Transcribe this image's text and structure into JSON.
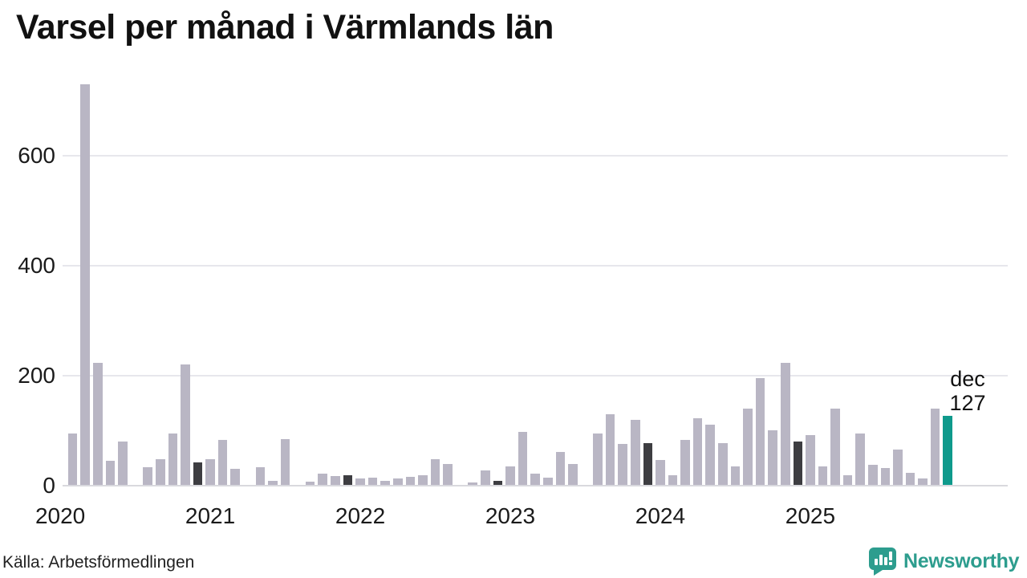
{
  "title": "Varsel per månad i Värmlands län",
  "annotation": {
    "line1": "dec",
    "line2": "127"
  },
  "footer": {
    "source": "Källa: Arbetsförmedlingen",
    "brand": "Newsworthy"
  },
  "colors": {
    "bar": "#b9b6c4",
    "bar_dark": "#3d3d41",
    "bar_highlight": "#0f9a8c",
    "gridline": "#e7e7ec",
    "baseline": "#d9d9de",
    "axis_text": "#1a1a1a",
    "title_text": "#111111",
    "brand_teal": "#2d9d8e"
  },
  "chart_data": {
    "type": "bar",
    "title": "Varsel per månad i Värmlands län",
    "xlabel": "",
    "ylabel": "",
    "x_tick_labels": [
      "2020",
      "2021",
      "2022",
      "2023",
      "2024",
      "2025"
    ],
    "y_ticks": [
      0,
      200,
      400,
      600
    ],
    "ylim": [
      0,
      750
    ],
    "grid": "horizontal",
    "legend": "none",
    "series": [
      {
        "year": "2020",
        "values": [
          0,
          95,
          730,
          223,
          45,
          80,
          0,
          33,
          48,
          95,
          220,
          41
        ]
      },
      {
        "year": "2021",
        "values": [
          48,
          82,
          30,
          0,
          33,
          8,
          84,
          0,
          6,
          21,
          17,
          18
        ]
      },
      {
        "year": "2022",
        "values": [
          12,
          14,
          8,
          12,
          16,
          18,
          47,
          39,
          0,
          5,
          27,
          8
        ]
      },
      {
        "year": "2023",
        "values": [
          34,
          97,
          21,
          14,
          60,
          39,
          0,
          94,
          130,
          75,
          119,
          77
        ]
      },
      {
        "year": "2024",
        "values": [
          46,
          19,
          82,
          122,
          111,
          77,
          35,
          140,
          195,
          100,
          223,
          79
        ]
      },
      {
        "year": "2025",
        "values": [
          92,
          34,
          140,
          19,
          95,
          37,
          31,
          65,
          22,
          13,
          140,
          127
        ]
      }
    ],
    "dark_bars": [
      "2020-12",
      "2021-12",
      "2022-12",
      "2023-12",
      "2024-12"
    ],
    "highlight_bar": {
      "year": "2025",
      "month": "dec",
      "value": 127
    }
  }
}
